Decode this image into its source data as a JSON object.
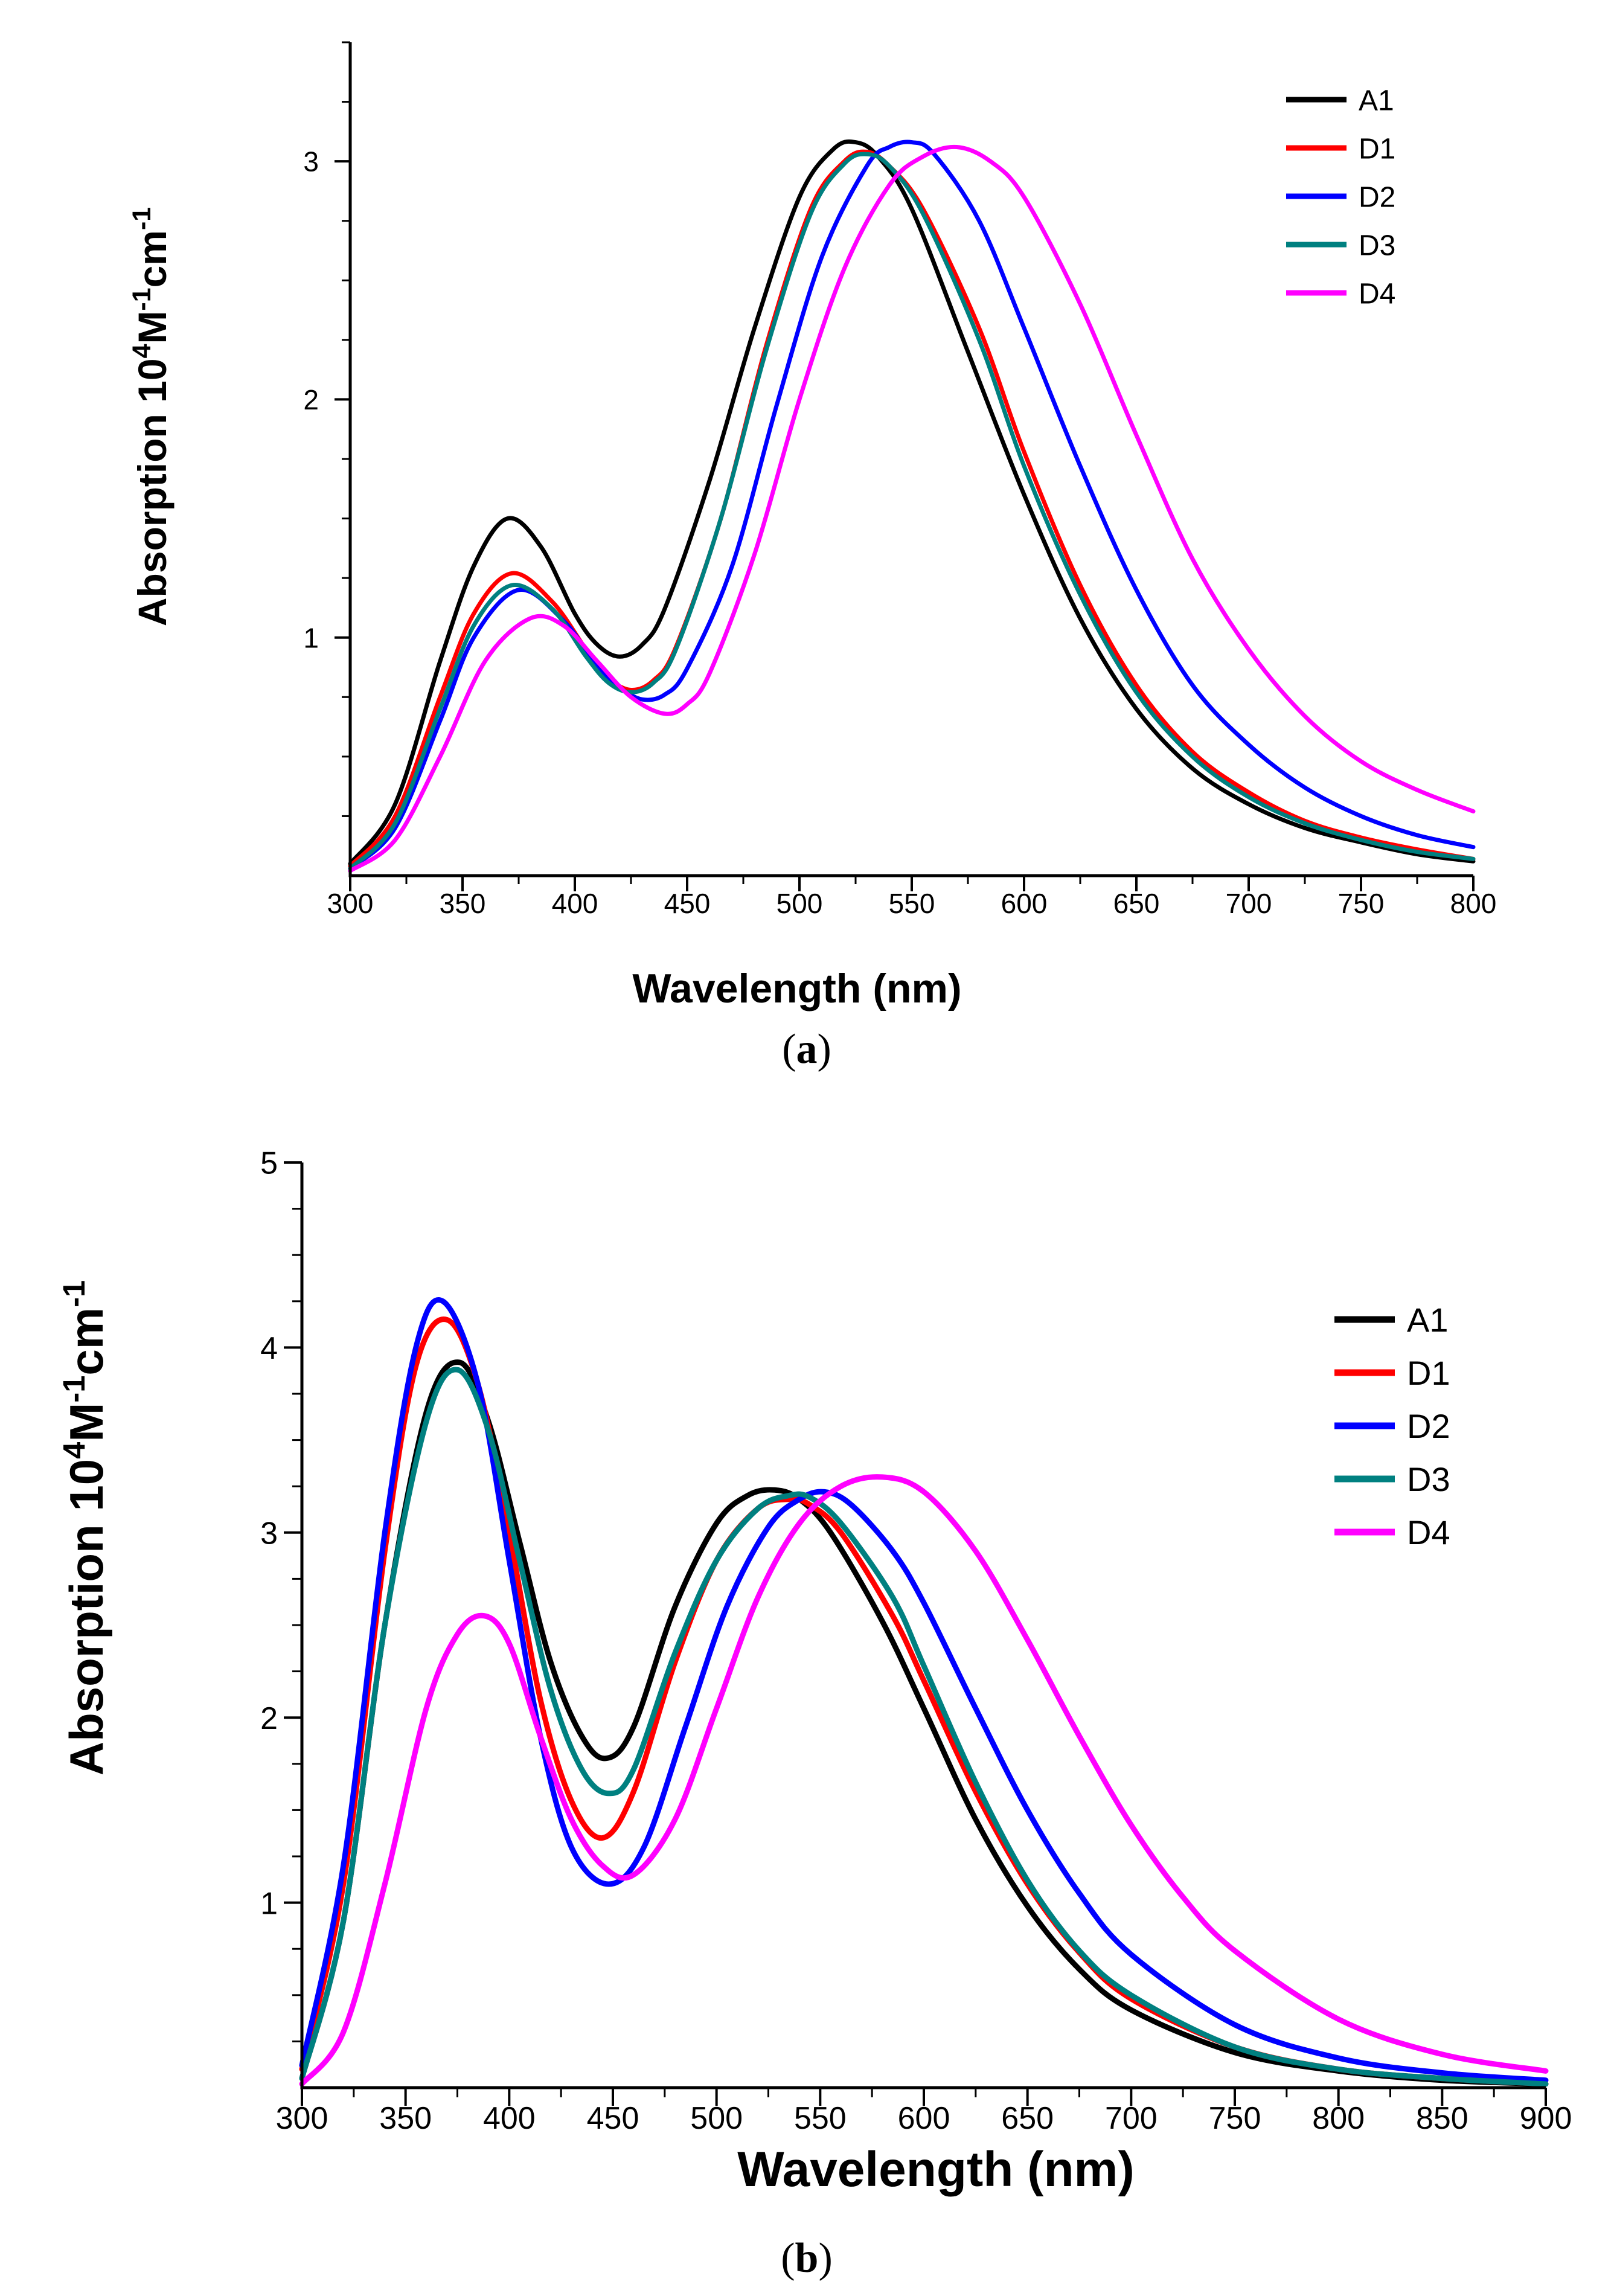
{
  "colors": {
    "A1": "#000000",
    "D1": "#ff0000",
    "D2": "#0000ff",
    "D3": "#008080",
    "D4": "#ff00ff",
    "axis": "#000000",
    "background": "#ffffff"
  },
  "chart_data": [
    {
      "id": "a",
      "type": "line",
      "caption": {
        "open": "(",
        "letter": "a",
        "close": ")"
      },
      "xlabel": "Wavelength (nm)",
      "ylabel": {
        "main": "Absorption 10",
        "sup1": "4",
        "m": "M",
        "sup2": "-1",
        "cm": "cm",
        "sup3": "-1"
      },
      "xlim": [
        300,
        800
      ],
      "ylim": [
        0,
        3.5
      ],
      "x_ticks": [
        300,
        350,
        400,
        450,
        500,
        550,
        600,
        650,
        700,
        750,
        800
      ],
      "x_tick_labels": [
        "300",
        "350",
        "400",
        "450",
        "500",
        "550",
        "600",
        "650",
        "700",
        "750",
        "800"
      ],
      "y_ticks": [
        1,
        2,
        3
      ],
      "y_tick_labels": [
        "1",
        "2",
        "3"
      ],
      "y_minor_step": 0.25,
      "legend_position": "top-right",
      "legend": [
        "A1",
        "D1",
        "D2",
        "D3",
        "D4"
      ],
      "series": [
        {
          "name": "A1",
          "x": [
            300,
            320,
            340,
            355,
            370,
            385,
            400,
            410,
            420,
            430,
            440,
            460,
            480,
            500,
            515,
            525,
            535,
            550,
            575,
            600,
            625,
            650,
            675,
            700,
            725,
            750,
            775,
            800
          ],
          "y": [
            0.05,
            0.3,
            0.9,
            1.3,
            1.5,
            1.38,
            1.1,
            0.97,
            0.92,
            0.97,
            1.12,
            1.66,
            2.3,
            2.85,
            3.05,
            3.08,
            3.02,
            2.8,
            2.2,
            1.6,
            1.08,
            0.7,
            0.45,
            0.3,
            0.2,
            0.14,
            0.09,
            0.06
          ]
        },
        {
          "name": "D1",
          "x": [
            300,
            320,
            340,
            355,
            372,
            390,
            405,
            415,
            425,
            435,
            445,
            465,
            485,
            505,
            520,
            530,
            540,
            555,
            580,
            600,
            625,
            650,
            675,
            700,
            725,
            750,
            775,
            800
          ],
          "y": [
            0.04,
            0.25,
            0.75,
            1.1,
            1.27,
            1.15,
            0.95,
            0.83,
            0.78,
            0.82,
            0.96,
            1.5,
            2.22,
            2.8,
            3.0,
            3.04,
            2.98,
            2.8,
            2.3,
            1.78,
            1.22,
            0.8,
            0.52,
            0.35,
            0.23,
            0.16,
            0.11,
            0.07
          ]
        },
        {
          "name": "D2",
          "x": [
            300,
            320,
            340,
            355,
            375,
            395,
            410,
            420,
            430,
            440,
            450,
            470,
            490,
            510,
            530,
            540,
            550,
            560,
            580,
            600,
            625,
            650,
            675,
            700,
            725,
            750,
            775,
            800
          ],
          "y": [
            0.03,
            0.2,
            0.65,
            1.0,
            1.2,
            1.07,
            0.88,
            0.79,
            0.74,
            0.76,
            0.87,
            1.3,
            1.98,
            2.6,
            2.98,
            3.06,
            3.08,
            3.03,
            2.75,
            2.3,
            1.72,
            1.2,
            0.8,
            0.55,
            0.37,
            0.25,
            0.17,
            0.12
          ]
        },
        {
          "name": "D3",
          "x": [
            300,
            320,
            340,
            355,
            372,
            390,
            405,
            415,
            425,
            435,
            445,
            465,
            485,
            505,
            520,
            530,
            540,
            555,
            580,
            600,
            625,
            650,
            675,
            700,
            725,
            750,
            775,
            800
          ],
          "y": [
            0.03,
            0.22,
            0.7,
            1.05,
            1.22,
            1.12,
            0.92,
            0.81,
            0.77,
            0.81,
            0.95,
            1.5,
            2.2,
            2.78,
            2.99,
            3.03,
            2.98,
            2.78,
            2.25,
            1.72,
            1.18,
            0.77,
            0.5,
            0.33,
            0.22,
            0.15,
            0.1,
            0.07
          ]
        },
        {
          "name": "D4",
          "x": [
            300,
            320,
            340,
            360,
            380,
            395,
            410,
            425,
            440,
            450,
            460,
            480,
            500,
            520,
            540,
            555,
            570,
            585,
            600,
            625,
            650,
            675,
            700,
            725,
            750,
            775,
            800
          ],
          "y": [
            0.02,
            0.15,
            0.5,
            0.9,
            1.08,
            1.05,
            0.9,
            0.75,
            0.68,
            0.72,
            0.85,
            1.35,
            2.0,
            2.55,
            2.9,
            3.02,
            3.06,
            3.0,
            2.85,
            2.4,
            1.85,
            1.33,
            0.95,
            0.67,
            0.48,
            0.36,
            0.27
          ]
        }
      ]
    },
    {
      "id": "b",
      "type": "line",
      "caption": {
        "open": "(",
        "letter": "b",
        "close": ")"
      },
      "xlabel": "Wavelength (nm)",
      "ylabel": {
        "main": "Absorption 10",
        "sup1": "4",
        "m": "M",
        "sup2": "-1",
        "cm": "cm",
        "sup3": "-1"
      },
      "xlim": [
        300,
        900
      ],
      "ylim": [
        0,
        5
      ],
      "x_ticks": [
        300,
        350,
        400,
        450,
        500,
        550,
        600,
        650,
        700,
        750,
        800,
        850,
        900
      ],
      "x_tick_labels": [
        "300",
        "350",
        "400",
        "450",
        "500",
        "550",
        "600",
        "650",
        "700",
        "750",
        "800",
        "850",
        "900"
      ],
      "y_ticks": [
        1,
        2,
        3,
        4,
        5
      ],
      "y_tick_labels": [
        "1",
        "2",
        "3",
        "4",
        "5"
      ],
      "y_minor_step": 0.25,
      "legend_position": "top-right",
      "legend": [
        "A1",
        "D1",
        "D2",
        "D3",
        "D4"
      ],
      "series": [
        {
          "name": "A1",
          "x": [
            300,
            320,
            340,
            360,
            376,
            390,
            405,
            420,
            435,
            447,
            460,
            480,
            500,
            515,
            528,
            540,
            555,
            580,
            600,
            625,
            650,
            675,
            700,
            750,
            800,
            850,
            900
          ],
          "y": [
            0.05,
            0.9,
            2.5,
            3.65,
            3.92,
            3.6,
            2.95,
            2.3,
            1.9,
            1.78,
            1.95,
            2.6,
            3.05,
            3.2,
            3.23,
            3.18,
            3.0,
            2.52,
            2.05,
            1.45,
            0.98,
            0.64,
            0.42,
            0.19,
            0.09,
            0.04,
            0.02
          ]
        },
        {
          "name": "D1",
          "x": [
            300,
            320,
            340,
            355,
            370,
            385,
            400,
            415,
            430,
            445,
            460,
            480,
            500,
            520,
            535,
            545,
            560,
            585,
            600,
            625,
            650,
            675,
            700,
            750,
            800,
            850,
            900
          ],
          "y": [
            0.1,
            1.1,
            2.9,
            3.9,
            4.15,
            3.8,
            3.0,
            2.1,
            1.55,
            1.35,
            1.6,
            2.3,
            2.85,
            3.13,
            3.18,
            3.15,
            3.0,
            2.55,
            2.2,
            1.6,
            1.1,
            0.73,
            0.48,
            0.22,
            0.1,
            0.05,
            0.02
          ]
        },
        {
          "name": "D2",
          "x": [
            300,
            320,
            340,
            355,
            368,
            385,
            400,
            415,
            430,
            448,
            465,
            485,
            505,
            525,
            540,
            552,
            565,
            585,
            600,
            625,
            650,
            675,
            700,
            750,
            800,
            850,
            900
          ],
          "y": [
            0.12,
            1.2,
            3.0,
            4.0,
            4.25,
            3.8,
            2.85,
            1.9,
            1.3,
            1.1,
            1.3,
            1.95,
            2.6,
            3.03,
            3.18,
            3.22,
            3.15,
            2.9,
            2.62,
            2.05,
            1.5,
            1.05,
            0.72,
            0.34,
            0.16,
            0.08,
            0.04
          ]
        },
        {
          "name": "D3",
          "x": [
            300,
            320,
            340,
            360,
            375,
            390,
            405,
            420,
            435,
            448,
            460,
            480,
            500,
            520,
            535,
            545,
            560,
            585,
            600,
            625,
            650,
            675,
            700,
            750,
            800,
            850,
            900
          ],
          "y": [
            0.05,
            0.9,
            2.5,
            3.6,
            3.88,
            3.55,
            2.85,
            2.15,
            1.72,
            1.59,
            1.72,
            2.35,
            2.85,
            3.13,
            3.2,
            3.19,
            3.05,
            2.65,
            2.28,
            1.65,
            1.12,
            0.74,
            0.5,
            0.22,
            0.1,
            0.05,
            0.02
          ]
        },
        {
          "name": "D4",
          "x": [
            300,
            320,
            340,
            360,
            375,
            388,
            400,
            415,
            430,
            445,
            460,
            480,
            500,
            520,
            540,
            560,
            580,
            600,
            625,
            650,
            675,
            700,
            725,
            750,
            800,
            850,
            900
          ],
          "y": [
            0.02,
            0.3,
            1.1,
            2.05,
            2.45,
            2.55,
            2.4,
            1.9,
            1.45,
            1.2,
            1.15,
            1.45,
            2.05,
            2.65,
            3.05,
            3.25,
            3.3,
            3.22,
            2.9,
            2.42,
            1.9,
            1.42,
            1.03,
            0.74,
            0.37,
            0.18,
            0.09
          ]
        }
      ]
    }
  ]
}
